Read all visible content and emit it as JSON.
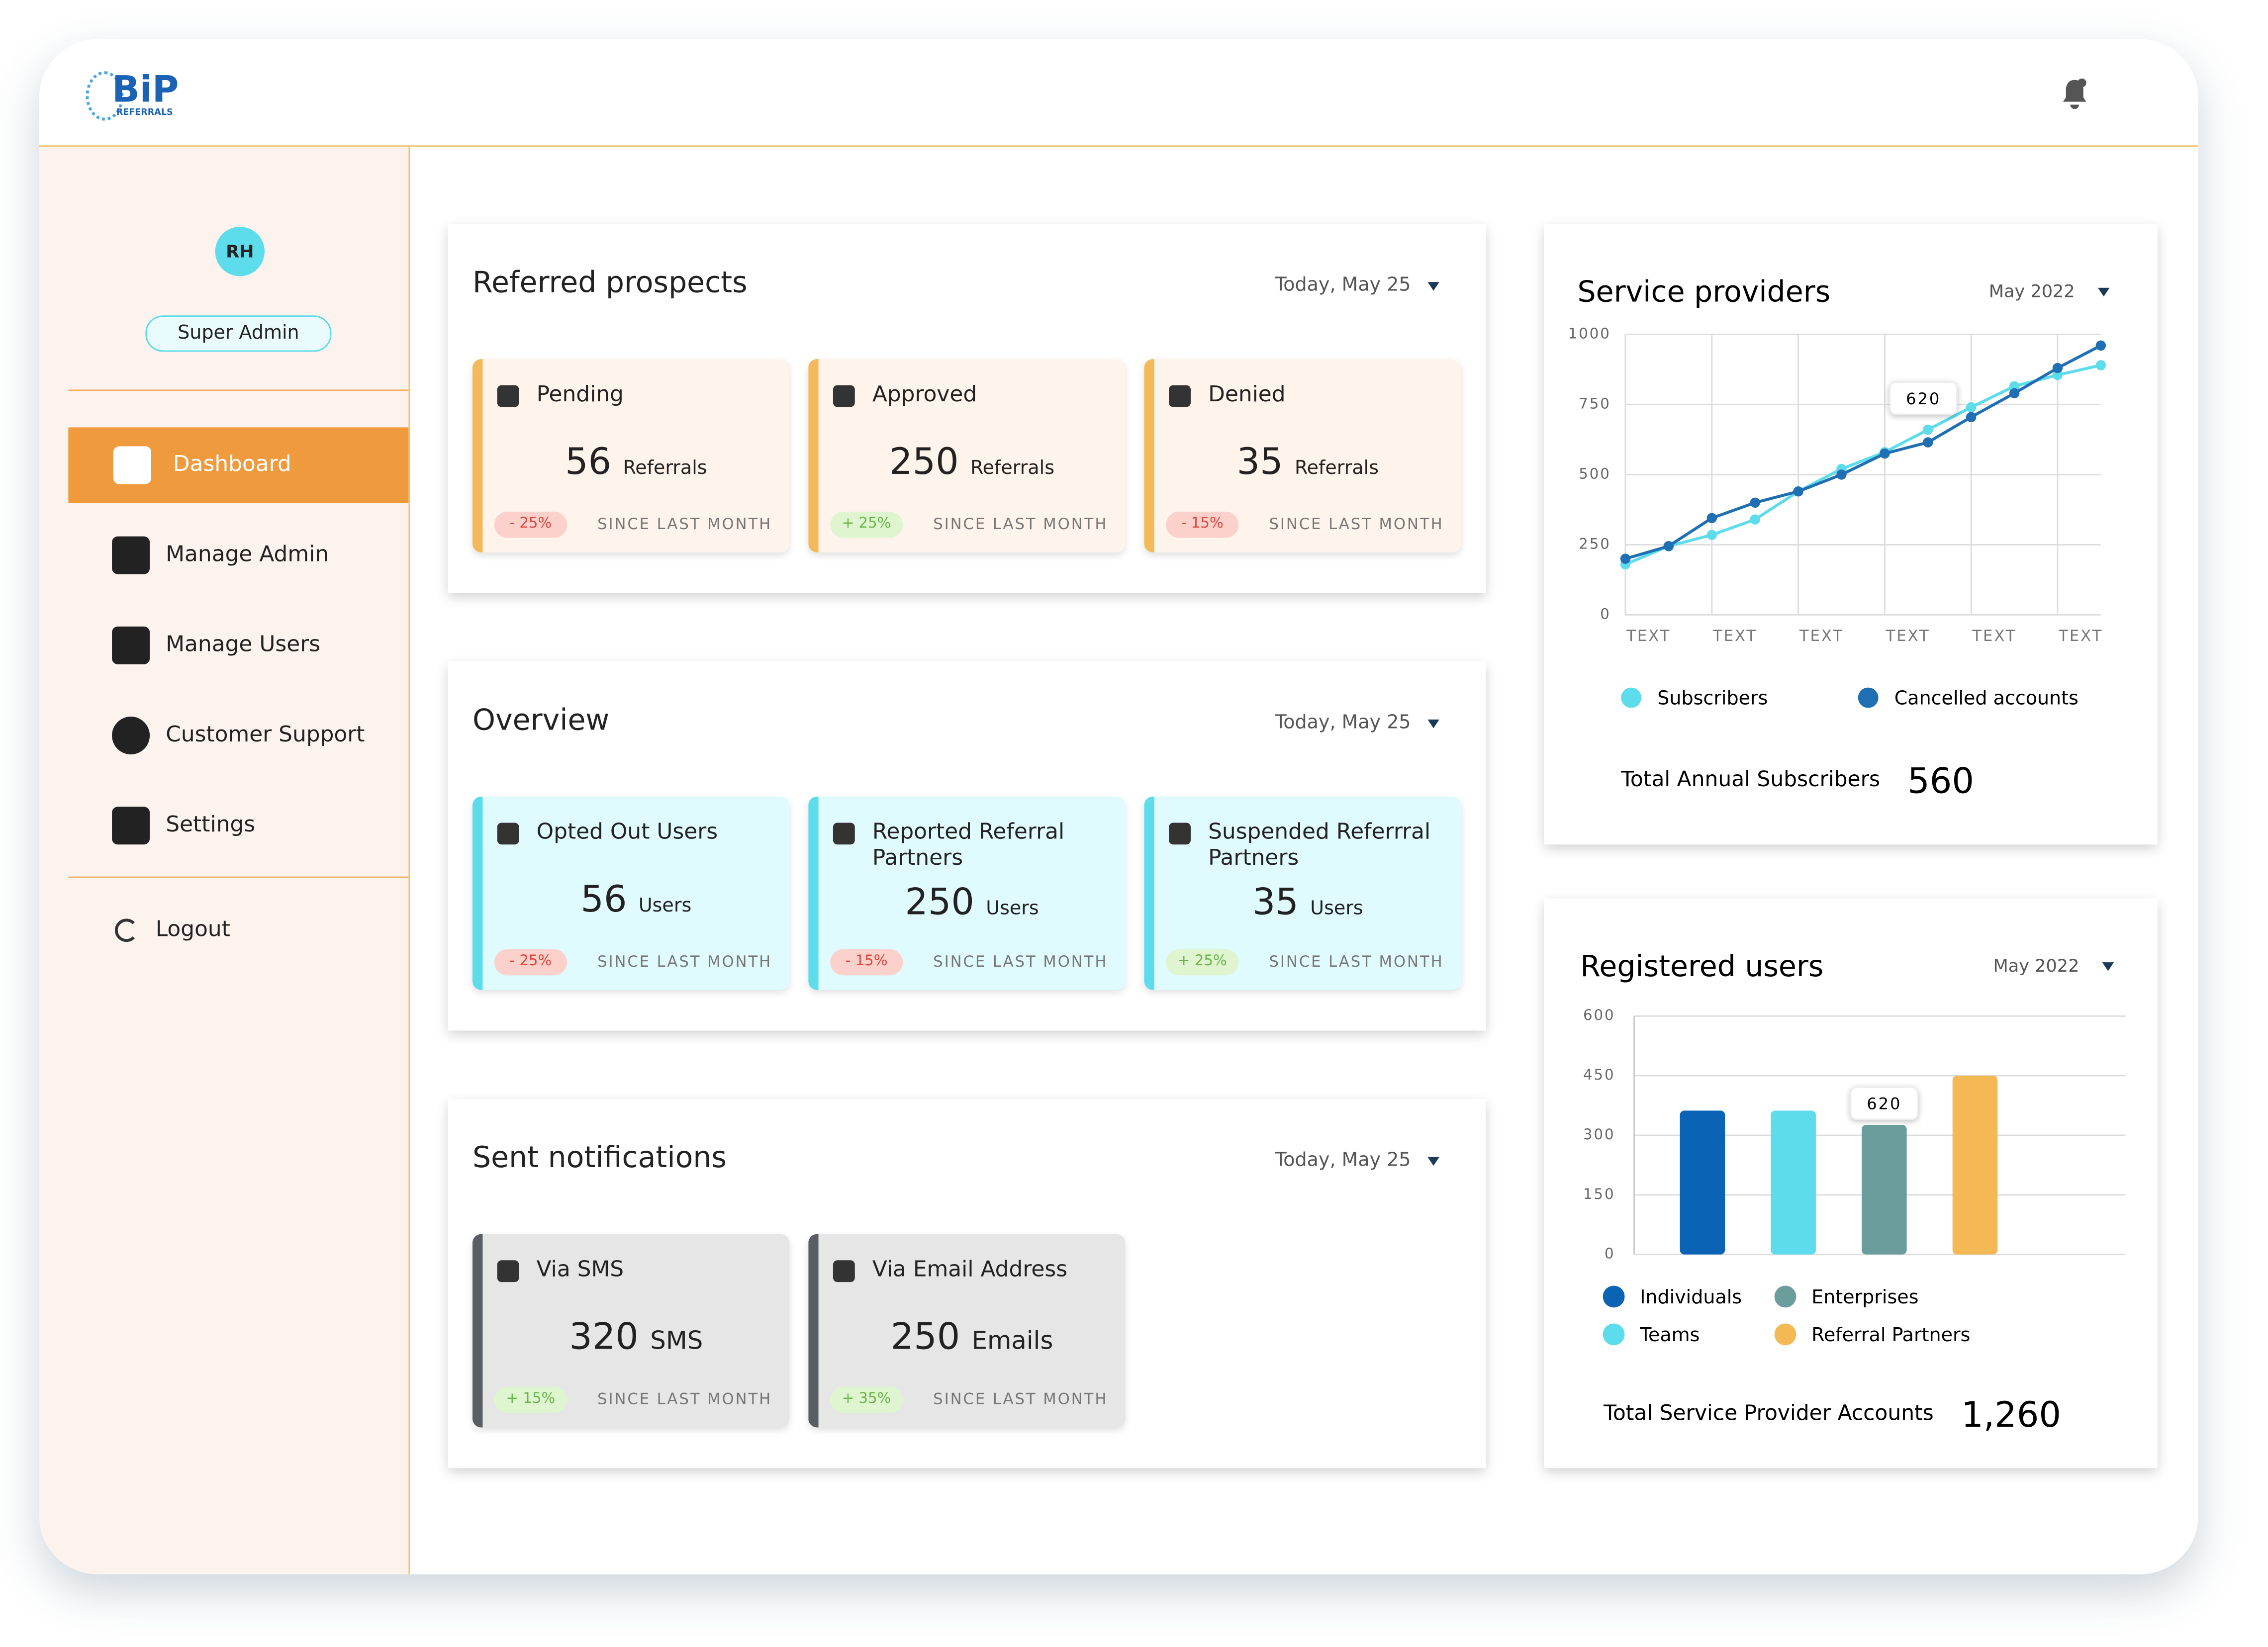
{
  "header": {
    "logo": "BiP",
    "logo_sub": "REFERRALS"
  },
  "sidebar": {
    "avatar": "RH",
    "role": "Super Admin",
    "nav": [
      "Dashboard",
      "Manage Admin",
      "Manage Users",
      "Customer Support",
      "Settings"
    ],
    "logout": "Logout"
  },
  "panels": [
    {
      "title": "Referred prospects",
      "date": "Today, May 25",
      "cards": [
        {
          "label": "Pending",
          "value": 56,
          "unit": "Referrals",
          "change": "- 25%",
          "note": "SINCE LAST MONTH"
        },
        {
          "label": "Approved",
          "value": 250,
          "unit": "Referrals",
          "change": "+ 25%",
          "note": "SINCE LAST MONTH"
        },
        {
          "label": "Denied",
          "value": 35,
          "unit": "Referrals",
          "change": "- 15%",
          "note": "SINCE LAST MONTH"
        }
      ]
    },
    {
      "title": "Overview",
      "date": "Today, May 25",
      "cards": [
        {
          "label": "Opted Out Users",
          "value": 56,
          "unit": "Users",
          "change": "- 25%",
          "note": "SINCE LAST MONTH"
        },
        {
          "label": "Reported Referral Partners",
          "value": 250,
          "unit": "Users",
          "change": "- 15%",
          "note": "SINCE LAST MONTH"
        },
        {
          "label": "Suspended Referrral Partners",
          "value": 35,
          "unit": "Users",
          "change": "+ 25%",
          "note": "SINCE LAST MONTH"
        }
      ]
    },
    {
      "title": "Sent notifications",
      "date": "Today, May 25",
      "cards": [
        {
          "label": "Via SMS",
          "value": 320,
          "unit": "SMS",
          "change": "+ 15%",
          "note": "SINCE LAST MONTH"
        },
        {
          "label": "Via Email Address",
          "value": 250,
          "unit": "Emails",
          "change": "+ 35%",
          "note": "SINCE LAST MONTH"
        }
      ]
    }
  ],
  "chart_data": [
    {
      "type": "line",
      "title": "Service providers",
      "period": "May 2022",
      "categories": [
        "TEXT",
        null,
        "TEXT",
        null,
        "TEXT",
        null,
        "TEXT",
        null,
        "TEXT",
        null,
        "TEXT",
        null
      ],
      "series": [
        {
          "name": "Subscribers",
          "color": "#5ddcec",
          "values": [
            180,
            245,
            285,
            340,
            440,
            520,
            580,
            660,
            740,
            815,
            855,
            890
          ]
        },
        {
          "name": "Cancelled accounts",
          "color": "#1f6fb2",
          "values": [
            200,
            245,
            345,
            400,
            440,
            500,
            575,
            615,
            705,
            790,
            880,
            960
          ]
        }
      ],
      "ylim": [
        0,
        1000
      ],
      "yticks": [
        0,
        250,
        500,
        750,
        1000
      ],
      "grid": true,
      "annotation": "620",
      "total_label": "Total Annual Subscribers",
      "total": 560
    },
    {
      "type": "bar",
      "title": "Registered users",
      "period": "May 2022",
      "series": [
        {
          "name": "Individuals",
          "color": "#0a63b5",
          "values": [
            362
          ]
        },
        {
          "name": "Teams",
          "color": "#5ddcec",
          "values": [
            362
          ]
        },
        {
          "name": "Enterprises",
          "color": "#6a9d9b",
          "values": [
            326
          ]
        },
        {
          "name": "Referral Partners",
          "color": "#f4b955",
          "values": [
            450
          ]
        }
      ],
      "ylim": [
        0,
        600
      ],
      "yticks": [
        0,
        150,
        300,
        450,
        600
      ],
      "grid": true,
      "annotation": "620",
      "total_label": "Total Service Provider Accounts",
      "total": "1,260"
    }
  ]
}
